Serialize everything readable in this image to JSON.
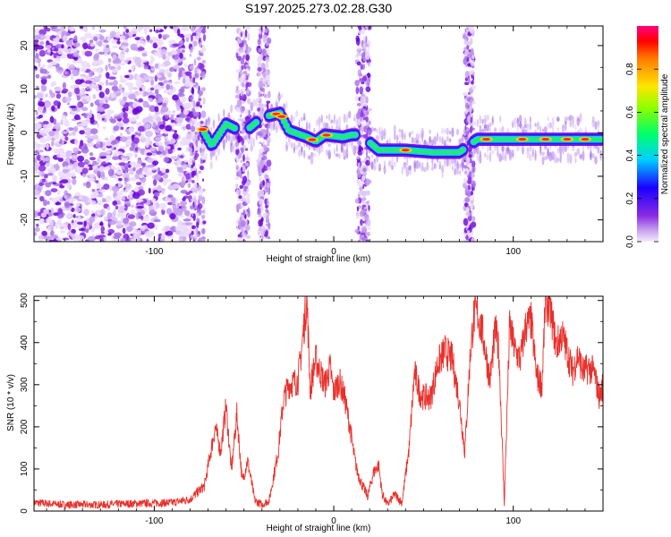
{
  "chart_data": [
    {
      "type": "heatmap",
      "title": "S197.2025.273.02.28.G30",
      "xlabel": "Height of straight line (km)",
      "ylabel": "Frequency (Hz)",
      "xlim": [
        -167,
        150
      ],
      "ylim": [
        -25,
        24.5
      ],
      "xticks": [
        -100,
        0,
        100
      ],
      "yticks": [
        -20,
        -10,
        0,
        10,
        20
      ],
      "colorbar": {
        "label": "Normalized spectral amplitude",
        "range": [
          0.0,
          1.0
        ],
        "ticks": [
          "0.0",
          "0.2",
          "0.4",
          "0.6",
          "0.8"
        ],
        "colormap": "rainbow (magenta-blue-cyan-green-yellow-red)"
      },
      "features": {
        "noise_region_km": [
          -167,
          -80
        ],
        "dropouts_km": [
          [
            -80,
            -72
          ],
          [
            -54,
            -47
          ],
          [
            -42,
            -36
          ],
          [
            13,
            20
          ],
          [
            73,
            78
          ]
        ],
        "ridge": [
          {
            "x": -74,
            "f": 1.5
          },
          {
            "x": -68,
            "f": -3
          },
          {
            "x": -60,
            "f": 2
          },
          {
            "x": -50,
            "f": 0
          },
          {
            "x": -40,
            "f": 3.5
          },
          {
            "x": -30,
            "f": 4.5
          },
          {
            "x": -25,
            "f": 0.5
          },
          {
            "x": -15,
            "f": -1
          },
          {
            "x": -10,
            "f": -2
          },
          {
            "x": -5,
            "f": -0.5
          },
          {
            "x": 5,
            "f": -1
          },
          {
            "x": 10,
            "f": -0.5
          },
          {
            "x": 15,
            "f": -0.5
          },
          {
            "x": 25,
            "f": -4
          },
          {
            "x": 40,
            "f": -4
          },
          {
            "x": 55,
            "f": -4.5
          },
          {
            "x": 70,
            "f": -4.5
          },
          {
            "x": 80,
            "f": -1.5
          },
          {
            "x": 100,
            "f": -1.5
          },
          {
            "x": 120,
            "f": -1.5
          },
          {
            "x": 148,
            "f": -1.5
          }
        ]
      }
    },
    {
      "type": "line",
      "xlabel": "Height of straight line (km)",
      "ylabel": "SNR (10 * v/v)",
      "xlim": [
        -167,
        150
      ],
      "ylim": [
        0,
        510
      ],
      "xticks": [
        -100,
        0,
        100
      ],
      "yticks": [
        0,
        100,
        200,
        300,
        400,
        500
      ],
      "series": [
        {
          "name": "SNR",
          "color": "#e8312c",
          "x": [
            -167,
            -150,
            -130,
            -110,
            -90,
            -80,
            -72,
            -66,
            -63,
            -60,
            -57,
            -54,
            -51,
            -48,
            -44,
            -40,
            -36,
            -31,
            -28,
            -25,
            -20,
            -18,
            -15,
            -13,
            -12,
            -10,
            -5,
            -2,
            0,
            3,
            6,
            9,
            11,
            13,
            16,
            19,
            22,
            25,
            27,
            30,
            34,
            38,
            42,
            45,
            48,
            50,
            54,
            58,
            62,
            66,
            70,
            73,
            76,
            78,
            80,
            83,
            87,
            90,
            92,
            95,
            98,
            101,
            104,
            107,
            110,
            113,
            116,
            118,
            121,
            124,
            127,
            130,
            133,
            136,
            139,
            142,
            145,
            148,
            150
          ],
          "values": [
            20,
            15,
            15,
            18,
            20,
            28,
            60,
            200,
            140,
            250,
            95,
            230,
            70,
            120,
            25,
            15,
            25,
            140,
            265,
            300,
            310,
            380,
            505,
            280,
            320,
            360,
            300,
            340,
            280,
            310,
            270,
            200,
            140,
            95,
            60,
            35,
            90,
            110,
            40,
            15,
            40,
            20,
            150,
            330,
            280,
            270,
            270,
            350,
            380,
            360,
            260,
            140,
            370,
            460,
            470,
            420,
            310,
            430,
            380,
            20,
            440,
            380,
            360,
            440,
            450,
            320,
            300,
            505,
            470,
            390,
            420,
            380,
            330,
            370,
            330,
            340,
            330,
            270,
            300
          ]
        }
      ]
    }
  ]
}
